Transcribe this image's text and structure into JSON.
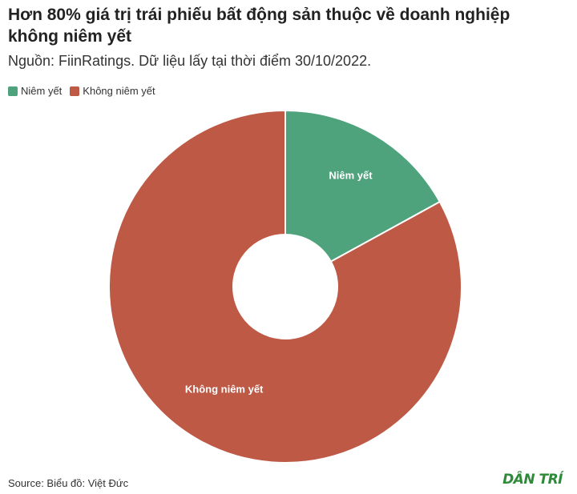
{
  "title": "Hơn 80% giá trị trái phiếu bất động sản thuộc về doanh nghiệp không niêm yết",
  "subtitle": "Nguồn: FiinRatings. Dữ liệu lấy tại thời điểm 30/10/2022.",
  "footer": "Source: Biểu đồ: Việt Đức",
  "logo": "DÂN TRÍ",
  "colors": {
    "listed": "#4ea37d",
    "unlisted": "#bd5945"
  },
  "chart_data": {
    "type": "pie",
    "donut": true,
    "legend": "top-left",
    "categories": [
      "Niêm yết",
      "Không niêm yết"
    ],
    "values": [
      17,
      83
    ],
    "slice_labels": [
      "Niêm yết",
      "Không niêm yết"
    ],
    "colors": [
      "#4ea37d",
      "#bd5945"
    ]
  }
}
